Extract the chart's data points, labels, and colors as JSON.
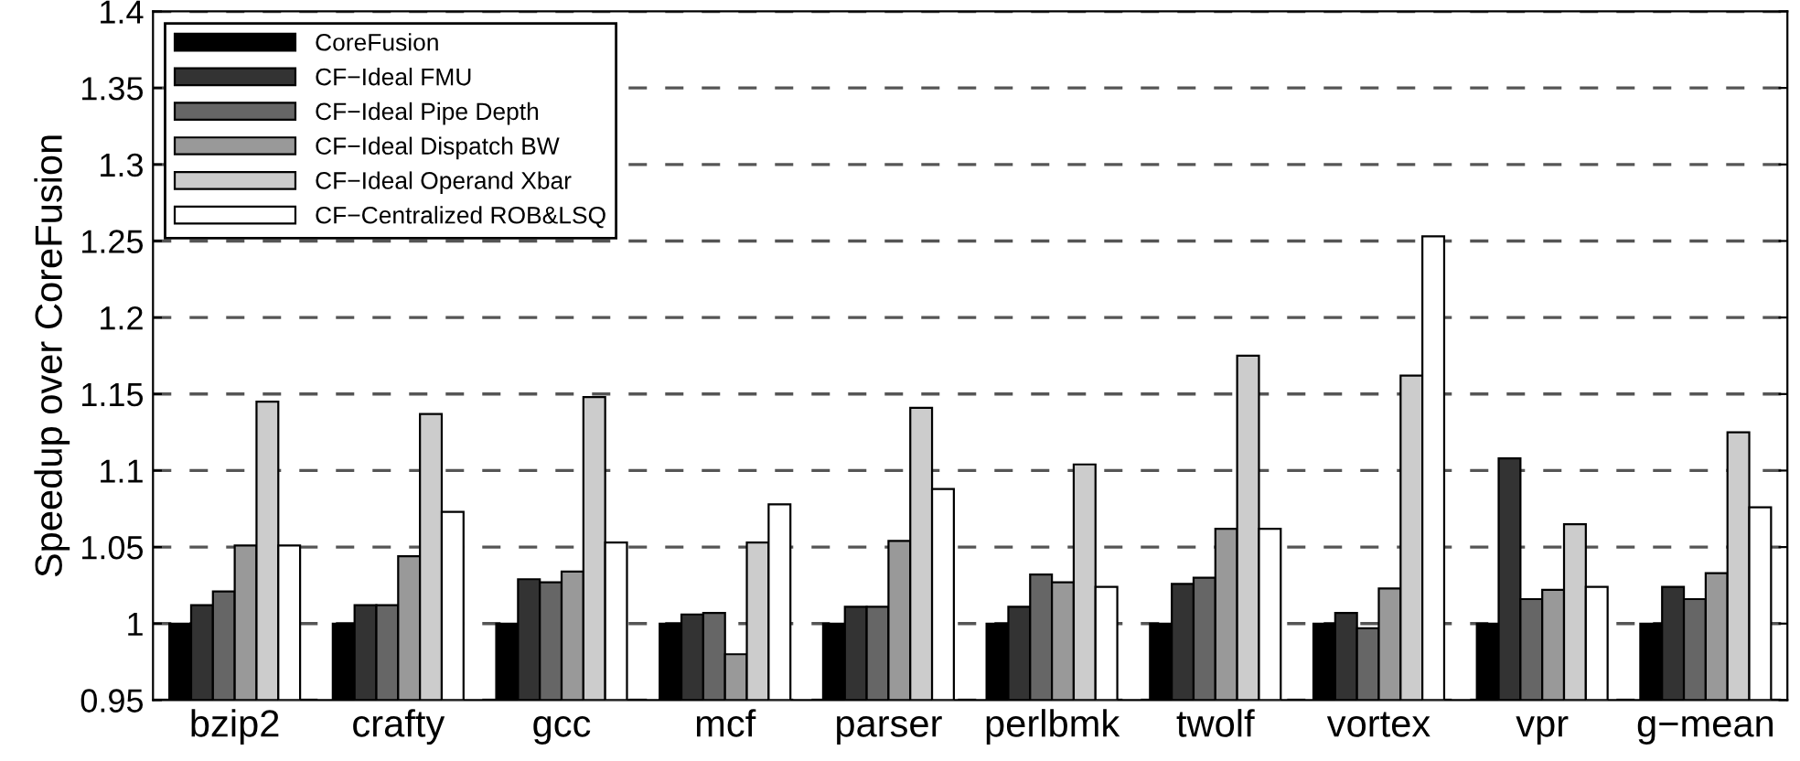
{
  "chart_data": {
    "type": "bar",
    "ylabel": "Speedup over CoreFusion",
    "categories": [
      "bzip2",
      "crafty",
      "gcc",
      "mcf",
      "parser",
      "perlbmk",
      "twolf",
      "vortex",
      "vpr",
      "g−mean"
    ],
    "series": [
      {
        "name": "CoreFusion",
        "color": "#000000",
        "values": [
          1,
          1,
          1,
          1,
          1,
          1,
          1,
          1,
          1,
          1
        ]
      },
      {
        "name": "CF−Ideal FMU",
        "color": "#333333",
        "values": [
          1.012,
          1.012,
          1.029,
          1.006,
          1.011,
          1.011,
          1.026,
          1.007,
          1.108,
          1.024
        ]
      },
      {
        "name": "CF−Ideal Pipe Depth",
        "color": "#666666",
        "values": [
          1.021,
          1.012,
          1.027,
          1.007,
          1.011,
          1.032,
          1.03,
          0.997,
          1.016,
          1.016
        ]
      },
      {
        "name": "CF−Ideal Dispatch BW",
        "color": "#999999",
        "values": [
          1.051,
          1.044,
          1.034,
          0.98,
          1.054,
          1.027,
          1.062,
          1.023,
          1.022,
          1.033
        ]
      },
      {
        "name": "CF−Ideal Operand Xbar",
        "color": "#cccccc",
        "values": [
          1.145,
          1.137,
          1.148,
          1.053,
          1.141,
          1.104,
          1.175,
          1.162,
          1.065,
          1.125
        ]
      },
      {
        "name": "CF−Centralized ROB&LSQ",
        "color": "#ffffff",
        "values": [
          1.051,
          1.073,
          1.053,
          1.078,
          1.088,
          1.024,
          1.062,
          1.253,
          1.024,
          1.076
        ]
      }
    ],
    "ylim": [
      0.95,
      1.4
    ],
    "yticks": [
      0.95,
      1,
      1.05,
      1.1,
      1.15,
      1.2,
      1.25,
      1.3,
      1.35,
      1.4
    ],
    "grid": "y",
    "legend": "top left"
  }
}
